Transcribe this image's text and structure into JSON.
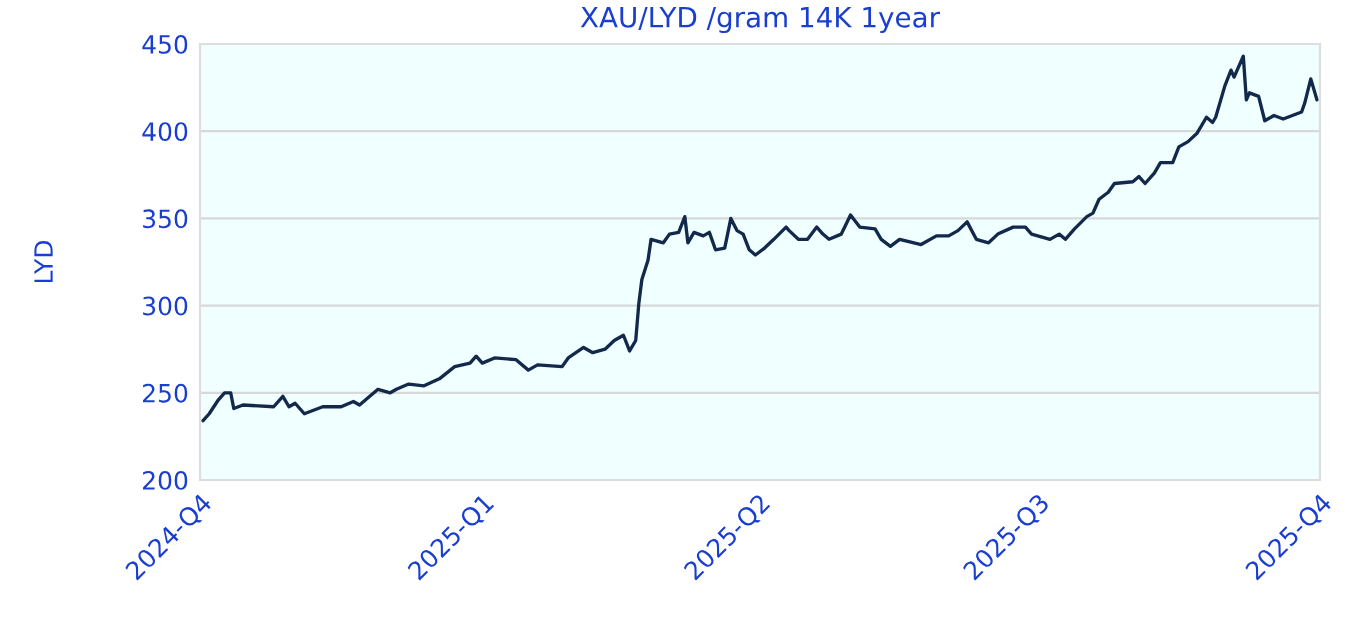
{
  "chart_data": {
    "type": "line",
    "title": "XAU/LYD /gram 14K 1year",
    "ylabel": "LYD",
    "xlim": [
      "2024-10-01",
      "2025-10-01"
    ],
    "xticks": [
      {
        "value": "2024-10-01",
        "label": "2024-Q4"
      },
      {
        "value": "2025-01-01",
        "label": "2025-Q1"
      },
      {
        "value": "2025-04-01",
        "label": "2025-Q2"
      },
      {
        "value": "2025-07-01",
        "label": "2025-Q3"
      },
      {
        "value": "2025-10-01",
        "label": "2025-Q4"
      }
    ],
    "ylim": [
      200,
      450
    ],
    "yticks": [
      200,
      250,
      300,
      350,
      400,
      450
    ],
    "grid": "y",
    "legend": false,
    "marker": "none",
    "line_style": "solid",
    "x": [
      "2024-10-02",
      "2024-10-04",
      "2024-10-07",
      "2024-10-09",
      "2024-10-11",
      "2024-10-12",
      "2024-10-15",
      "2024-10-25",
      "2024-10-28",
      "2024-10-30",
      "2024-11-01",
      "2024-11-04",
      "2024-11-10",
      "2024-11-16",
      "2024-11-20",
      "2024-11-22",
      "2024-11-28",
      "2024-12-02",
      "2024-12-04",
      "2024-12-08",
      "2024-12-13",
      "2024-12-18",
      "2024-12-23",
      "2024-12-28",
      "2024-12-30",
      "2025-01-01",
      "2025-01-05",
      "2025-01-12",
      "2025-01-16",
      "2025-01-19",
      "2025-01-27",
      "2025-01-29",
      "2025-02-03",
      "2025-02-06",
      "2025-02-10",
      "2025-02-13",
      "2025-02-16",
      "2025-02-18",
      "2025-02-20",
      "2025-02-21",
      "2025-02-22",
      "2025-02-24",
      "2025-02-25",
      "2025-03-01",
      "2025-03-03",
      "2025-03-06",
      "2025-03-08",
      "2025-03-09",
      "2025-03-11",
      "2025-03-14",
      "2025-03-16",
      "2025-03-18",
      "2025-03-21",
      "2025-03-23",
      "2025-03-25",
      "2025-03-27",
      "2025-03-29",
      "2025-03-31",
      "2025-04-03",
      "2025-04-06",
      "2025-04-10",
      "2025-04-11",
      "2025-04-14",
      "2025-04-17",
      "2025-04-20",
      "2025-04-22",
      "2025-04-24",
      "2025-04-28",
      "2025-05-01",
      "2025-05-04",
      "2025-05-09",
      "2025-05-11",
      "2025-05-14",
      "2025-05-17",
      "2025-05-24",
      "2025-05-29",
      "2025-06-02",
      "2025-06-05",
      "2025-06-08",
      "2025-06-11",
      "2025-06-15",
      "2025-06-18",
      "2025-06-23",
      "2025-06-27",
      "2025-06-29",
      "2025-07-05",
      "2025-07-08",
      "2025-07-10",
      "2025-07-13",
      "2025-07-17",
      "2025-07-19",
      "2025-07-21",
      "2025-07-24",
      "2025-07-26",
      "2025-08-01",
      "2025-08-03",
      "2025-08-05",
      "2025-08-08",
      "2025-08-10",
      "2025-08-14",
      "2025-08-16",
      "2025-08-19",
      "2025-08-22",
      "2025-08-25",
      "2025-08-27",
      "2025-08-28",
      "2025-08-31",
      "2025-09-02",
      "2025-09-03",
      "2025-09-06",
      "2025-09-07",
      "2025-09-08",
      "2025-09-11",
      "2025-09-13",
      "2025-09-16",
      "2025-09-19",
      "2025-09-25",
      "2025-09-26",
      "2025-09-28",
      "2025-09-30"
    ],
    "series": [
      {
        "color": "#13294b",
        "values": [
          234,
          238,
          246,
          250,
          250,
          241,
          243,
          242,
          248,
          242,
          244,
          238,
          242,
          242,
          245,
          243,
          252,
          250,
          252,
          255,
          254,
          258,
          265,
          267,
          271,
          267,
          270,
          269,
          263,
          266,
          265,
          270,
          276,
          273,
          275,
          280,
          283,
          274,
          280,
          301,
          315,
          326,
          338,
          336,
          341,
          342,
          351,
          336,
          342,
          340,
          342,
          332,
          333,
          350,
          343,
          341,
          332,
          329,
          333,
          338,
          345,
          343,
          338,
          338,
          345,
          341,
          338,
          341,
          352,
          345,
          344,
          338,
          334,
          338,
          335,
          340,
          340,
          343,
          348,
          338,
          336,
          341,
          345,
          345,
          341,
          338,
          341,
          338,
          344,
          351,
          353,
          361,
          365,
          370,
          371,
          374,
          370,
          376,
          382,
          382,
          391,
          394,
          399,
          408,
          405,
          408,
          426,
          435,
          431,
          443,
          418,
          422,
          420,
          406,
          409,
          407,
          411,
          416,
          430,
          418
        ]
      }
    ]
  }
}
